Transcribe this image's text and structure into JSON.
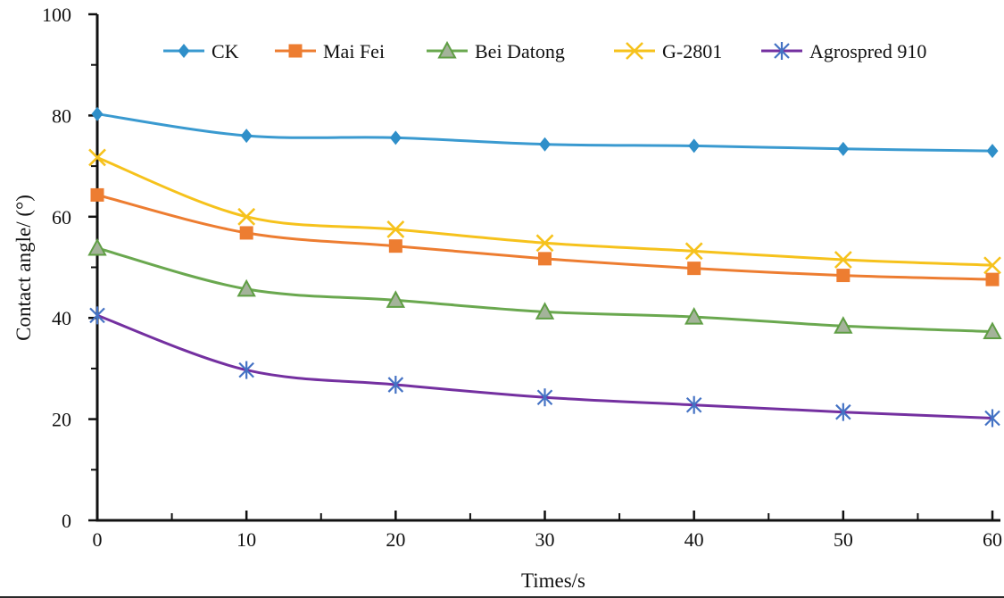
{
  "chart_data": {
    "type": "line",
    "x": [
      0,
      10,
      20,
      30,
      40,
      50,
      60
    ],
    "series": [
      {
        "name": "CK",
        "line_color": "#3a9ad0",
        "marker": "diamond",
        "marker_color": "#2f8fc9",
        "values": [
          80.3,
          76.0,
          75.6,
          74.3,
          74.0,
          73.4,
          73.0
        ]
      },
      {
        "name": "Mai Fei",
        "line_color": "#ed7d31",
        "marker": "square",
        "marker_color": "#ed7d31",
        "values": [
          64.3,
          56.8,
          54.2,
          51.7,
          49.8,
          48.4,
          47.6
        ]
      },
      {
        "name": "Bei Datong",
        "line_color": "#6aa84f",
        "marker": "triangle",
        "marker_color": "#a4b39a",
        "marker_stroke": "#5f9e44",
        "values": [
          53.8,
          45.7,
          43.5,
          41.2,
          40.2,
          38.4,
          37.3
        ]
      },
      {
        "name": "G-2801",
        "line_color": "#f6c21c",
        "marker": "x",
        "marker_color": "#f6c21c",
        "values": [
          71.7,
          60.0,
          57.5,
          54.8,
          53.2,
          51.5,
          50.4
        ]
      },
      {
        "name": "Agrospred 910",
        "line_color": "#7430a0",
        "marker": "asterisk",
        "marker_color": "#4472c4",
        "values": [
          40.5,
          29.7,
          26.8,
          24.3,
          22.8,
          21.4,
          20.2
        ]
      }
    ],
    "xlabel": "Times/s",
    "ylabel": "Contact angle/ (°)",
    "xlim": [
      0,
      60
    ],
    "ylim": [
      0,
      100
    ],
    "x_major_ticks": [
      0,
      10,
      20,
      30,
      40,
      50,
      60
    ],
    "x_minor_ticks": [
      5,
      15,
      25,
      35,
      45,
      55
    ],
    "y_major_ticks": [
      0,
      20,
      40,
      60,
      80,
      100
    ],
    "y_minor_ticks": [
      10,
      30,
      50,
      70,
      90
    ],
    "grid": false,
    "legend_position": "top",
    "axis_color": "#111111"
  }
}
